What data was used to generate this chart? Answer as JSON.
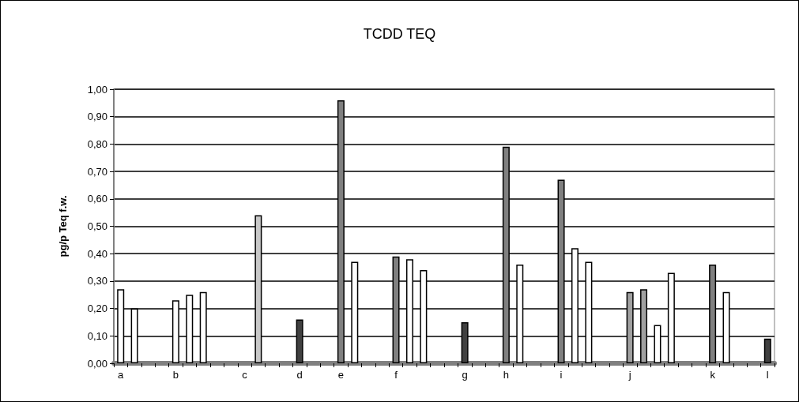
{
  "chart_data": {
    "type": "bar",
    "title": "TCDD TEQ",
    "ylabel": "pg/p Teq f.w.",
    "categories": [
      "a",
      null,
      null,
      null,
      "b",
      null,
      null,
      null,
      null,
      "c",
      null,
      null,
      null,
      "d",
      null,
      null,
      "e",
      null,
      null,
      null,
      "f",
      null,
      null,
      null,
      null,
      "g",
      null,
      null,
      "h",
      null,
      null,
      null,
      "i",
      null,
      null,
      null,
      null,
      "j",
      null,
      null,
      null,
      null,
      null,
      "k",
      null,
      null,
      null,
      "l"
    ],
    "series": [
      {
        "color": "#ffffff",
        "values": [
          0.27,
          0.2,
          null,
          null,
          0.23,
          0.25,
          0.26,
          null,
          null,
          null,
          null,
          null,
          null,
          null,
          null,
          null,
          null,
          0.37,
          null,
          null,
          null,
          0.38,
          0.34,
          null,
          null,
          null,
          null,
          null,
          null,
          0.36,
          null,
          null,
          null,
          0.42,
          0.37,
          null,
          null,
          null,
          null,
          0.14,
          0.33,
          null,
          null,
          null,
          0.26,
          null,
          null,
          null
        ]
      },
      {
        "color": "#808080",
        "values": [
          null,
          null,
          null,
          null,
          null,
          null,
          null,
          null,
          null,
          null,
          null,
          null,
          null,
          null,
          null,
          null,
          0.96,
          null,
          null,
          null,
          0.39,
          null,
          null,
          null,
          null,
          null,
          null,
          null,
          0.79,
          null,
          null,
          null,
          0.67,
          null,
          null,
          null,
          null,
          null,
          null,
          null,
          null,
          null,
          null,
          0.36,
          null,
          null,
          null,
          null
        ]
      },
      {
        "color": "#a0a0a0",
        "values": [
          null,
          null,
          null,
          null,
          null,
          null,
          null,
          null,
          null,
          null,
          null,
          null,
          null,
          null,
          null,
          null,
          null,
          null,
          null,
          null,
          null,
          null,
          null,
          null,
          null,
          null,
          null,
          null,
          null,
          null,
          null,
          null,
          null,
          null,
          null,
          null,
          null,
          0.26,
          0.27,
          null,
          null,
          null,
          null,
          null,
          null,
          null,
          null,
          null
        ]
      },
      {
        "color": "#c8c8c8",
        "values": [
          null,
          null,
          null,
          null,
          null,
          null,
          null,
          null,
          null,
          null,
          0.54,
          null,
          null,
          null,
          null,
          null,
          null,
          null,
          null,
          null,
          null,
          null,
          null,
          null,
          null,
          null,
          null,
          null,
          null,
          null,
          null,
          null,
          null,
          null,
          null,
          null,
          null,
          null,
          null,
          null,
          null,
          null,
          null,
          null,
          null,
          null,
          null,
          null
        ]
      },
      {
        "color": "#404040",
        "values": [
          null,
          null,
          null,
          null,
          null,
          null,
          null,
          null,
          null,
          null,
          null,
          null,
          null,
          0.16,
          null,
          null,
          null,
          null,
          null,
          null,
          null,
          null,
          null,
          null,
          null,
          0.15,
          null,
          null,
          null,
          null,
          null,
          null,
          null,
          null,
          null,
          null,
          null,
          null,
          null,
          null,
          null,
          null,
          null,
          null,
          null,
          null,
          null,
          0.09
        ]
      }
    ],
    "ylim": [
      0,
      1
    ],
    "yticks": [
      {
        "value": 0,
        "label": "0,00"
      },
      {
        "value": 0.1,
        "label": "0,10"
      },
      {
        "value": 0.2,
        "label": "0,20"
      },
      {
        "value": 0.3,
        "label": "0,30"
      },
      {
        "value": 0.4,
        "label": "0,40"
      },
      {
        "value": 0.5,
        "label": "0,50"
      },
      {
        "value": 0.6,
        "label": "0,60"
      },
      {
        "value": 0.7,
        "label": "0,70"
      },
      {
        "value": 0.8,
        "label": "0,80"
      },
      {
        "value": 0.9,
        "label": "0,90"
      },
      {
        "value": 1,
        "label": "1,00"
      }
    ],
    "grid": "y"
  }
}
